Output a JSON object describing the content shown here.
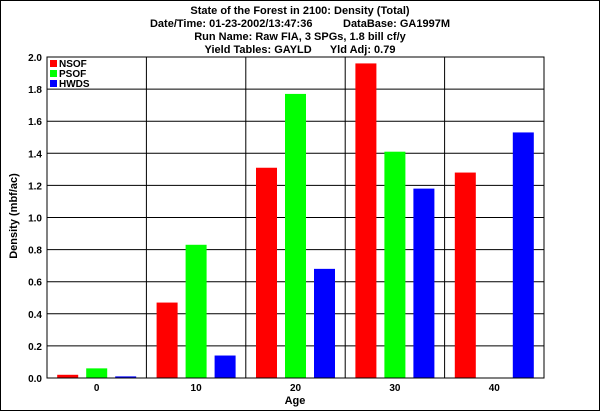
{
  "header": {
    "title": "State of the Forest in 2100: Density (Total)",
    "date_line": "Date/Time: 01-23-2002/13:47:36          DataBase: GA1997M",
    "run_line": "Run Name: Raw FIA, 3 SPGs, 1.8 bill cf/y",
    "yield_line": "Yield Tables: GAYLD      Yld Adj: 0.79"
  },
  "chart_data": {
    "type": "bar",
    "title": "State of the Forest in 2100: Density (Total)",
    "xlabel": "Age",
    "ylabel": "Density (mbf/ac)",
    "categories": [
      "0",
      "10",
      "20",
      "30",
      "40"
    ],
    "ylim": [
      0,
      2.0
    ],
    "yticks": [
      "0.0",
      "0.2",
      "0.4",
      "0.6",
      "0.8",
      "1.0",
      "1.2",
      "1.4",
      "1.6",
      "1.8",
      "2.0"
    ],
    "grid": true,
    "legend_position": "top-left",
    "series": [
      {
        "name": "NSOF",
        "color": "#ff0000",
        "values": [
          0.02,
          0.47,
          1.31,
          1.96,
          1.28
        ]
      },
      {
        "name": "PSOF",
        "color": "#00ff00",
        "values": [
          0.06,
          0.83,
          1.77,
          1.41,
          0.0
        ]
      },
      {
        "name": "HWDS",
        "color": "#0000ff",
        "values": [
          0.01,
          0.14,
          0.68,
          1.18,
          1.53
        ]
      }
    ]
  }
}
